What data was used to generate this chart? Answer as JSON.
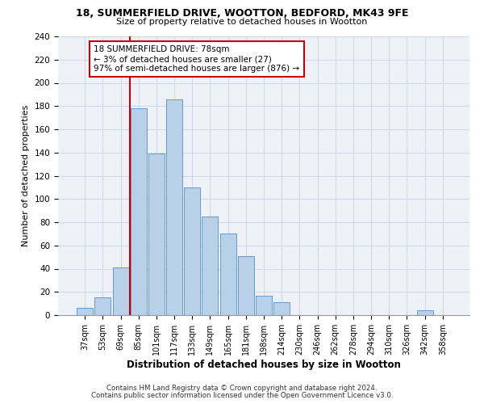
{
  "title_line1": "18, SUMMERFIELD DRIVE, WOOTTON, BEDFORD, MK43 9FE",
  "title_line2": "Size of property relative to detached houses in Wootton",
  "xlabel": "Distribution of detached houses by size in Wootton",
  "ylabel": "Number of detached properties",
  "bin_labels": [
    "37sqm",
    "53sqm",
    "69sqm",
    "85sqm",
    "101sqm",
    "117sqm",
    "133sqm",
    "149sqm",
    "165sqm",
    "181sqm",
    "198sqm",
    "214sqm",
    "230sqm",
    "246sqm",
    "262sqm",
    "278sqm",
    "294sqm",
    "310sqm",
    "326sqm",
    "342sqm",
    "358sqm"
  ],
  "bar_values": [
    6,
    15,
    41,
    178,
    139,
    186,
    110,
    85,
    70,
    51,
    17,
    11,
    0,
    0,
    0,
    0,
    0,
    0,
    0,
    4,
    0
  ],
  "bar_color": "#b8d0e8",
  "bar_edge_color": "#6699cc",
  "vline_color": "#cc0000",
  "annotation_text": "18 SUMMERFIELD DRIVE: 78sqm\n← 3% of detached houses are smaller (27)\n97% of semi-detached houses are larger (876) →",
  "annotation_box_edge": "#cc0000",
  "ylim": [
    0,
    240
  ],
  "yticks": [
    0,
    20,
    40,
    60,
    80,
    100,
    120,
    140,
    160,
    180,
    200,
    220,
    240
  ],
  "footer_line1": "Contains HM Land Registry data © Crown copyright and database right 2024.",
  "footer_line2": "Contains public sector information licensed under the Open Government Licence v3.0.",
  "bg_color": "#eef2f8",
  "grid_color": "#d0d8e8"
}
